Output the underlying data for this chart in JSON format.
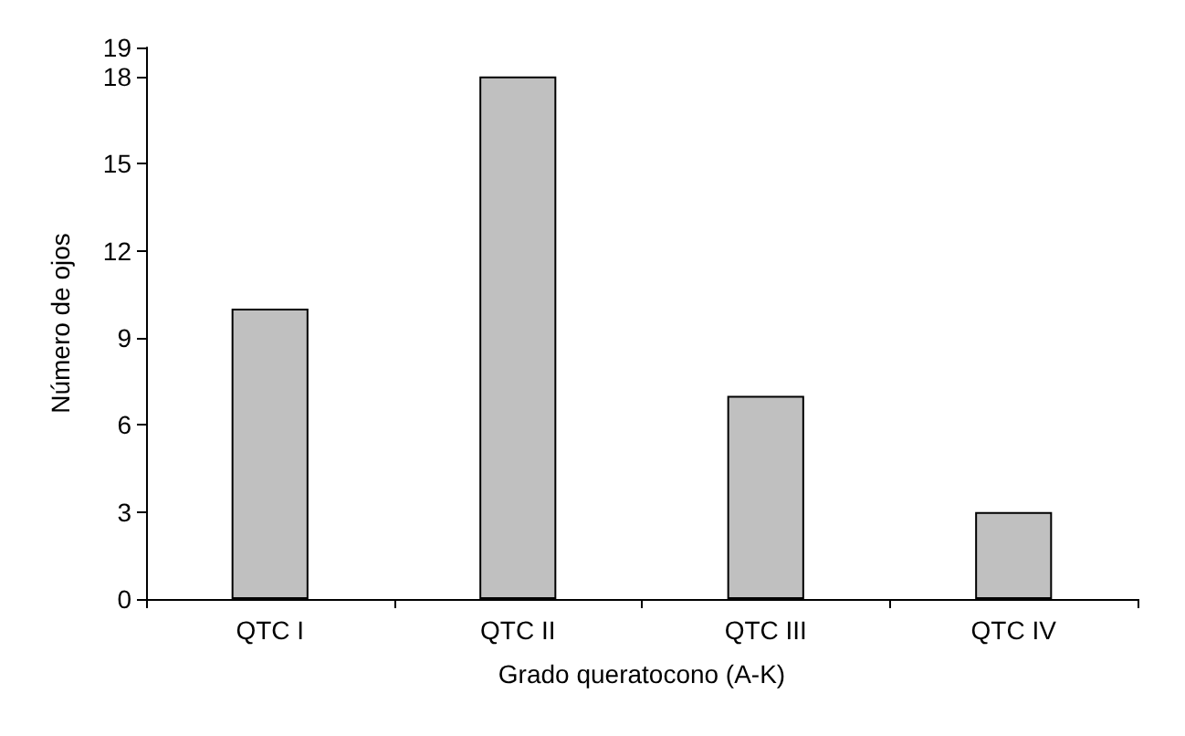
{
  "chart_data": {
    "type": "bar",
    "xlabel": "Grado queratocono (A-K)",
    "ylabel": "Número de ojos",
    "categories": [
      "QTC I",
      "QTC II",
      "QTC III",
      "QTC IV"
    ],
    "values": [
      10,
      18,
      7,
      3
    ],
    "color": "#c0c0c0",
    "ylim": [
      0,
      19
    ],
    "yticks": [
      0,
      3,
      6,
      9,
      12,
      15,
      18,
      19
    ],
    "grid": false
  }
}
